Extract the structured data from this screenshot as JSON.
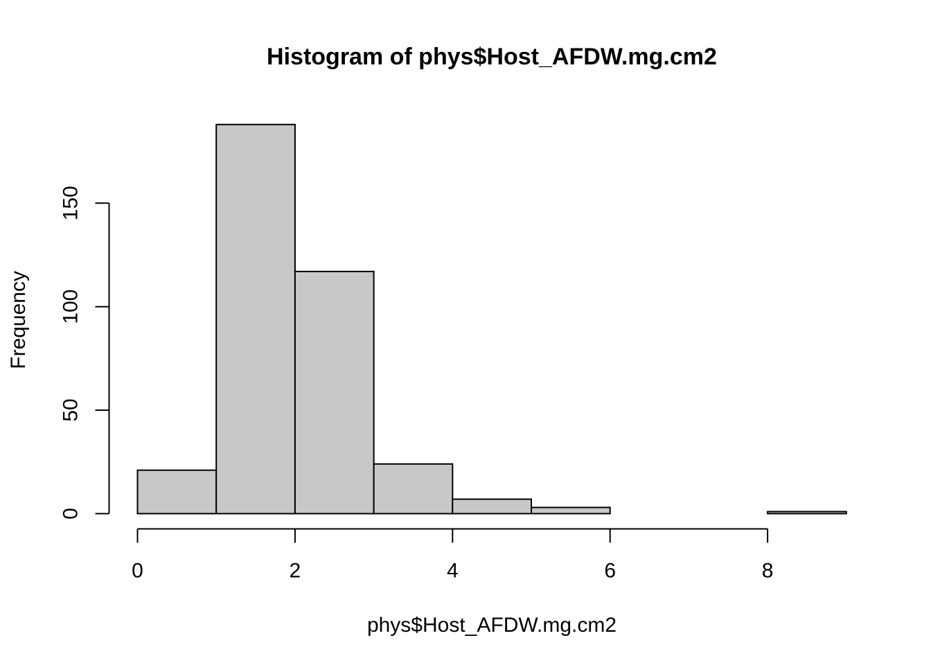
{
  "chart_data": {
    "type": "bar",
    "subtype": "histogram",
    "title": "Histogram of phys$Host_AFDW.mg.cm2",
    "xlabel": "phys$Host_AFDW.mg.cm2",
    "ylabel": "Frequency",
    "bins": [
      {
        "start": 0,
        "end": 1,
        "count": 21
      },
      {
        "start": 1,
        "end": 2,
        "count": 188
      },
      {
        "start": 2,
        "end": 3,
        "count": 117
      },
      {
        "start": 3,
        "end": 4,
        "count": 24
      },
      {
        "start": 4,
        "end": 5,
        "count": 7
      },
      {
        "start": 5,
        "end": 6,
        "count": 3
      },
      {
        "start": 6,
        "end": 7,
        "count": 0
      },
      {
        "start": 7,
        "end": 8,
        "count": 0
      },
      {
        "start": 8,
        "end": 9,
        "count": 1
      }
    ],
    "x_ticks": [
      "0",
      "2",
      "4",
      "6",
      "8"
    ],
    "y_ticks": [
      "0",
      "50",
      "100",
      "150"
    ],
    "xlim": [
      0,
      9
    ],
    "ylim": [
      0,
      188
    ],
    "bar_fill": "#c8c8c8",
    "bar_stroke": "#000000",
    "grid": false,
    "legend": "none"
  }
}
